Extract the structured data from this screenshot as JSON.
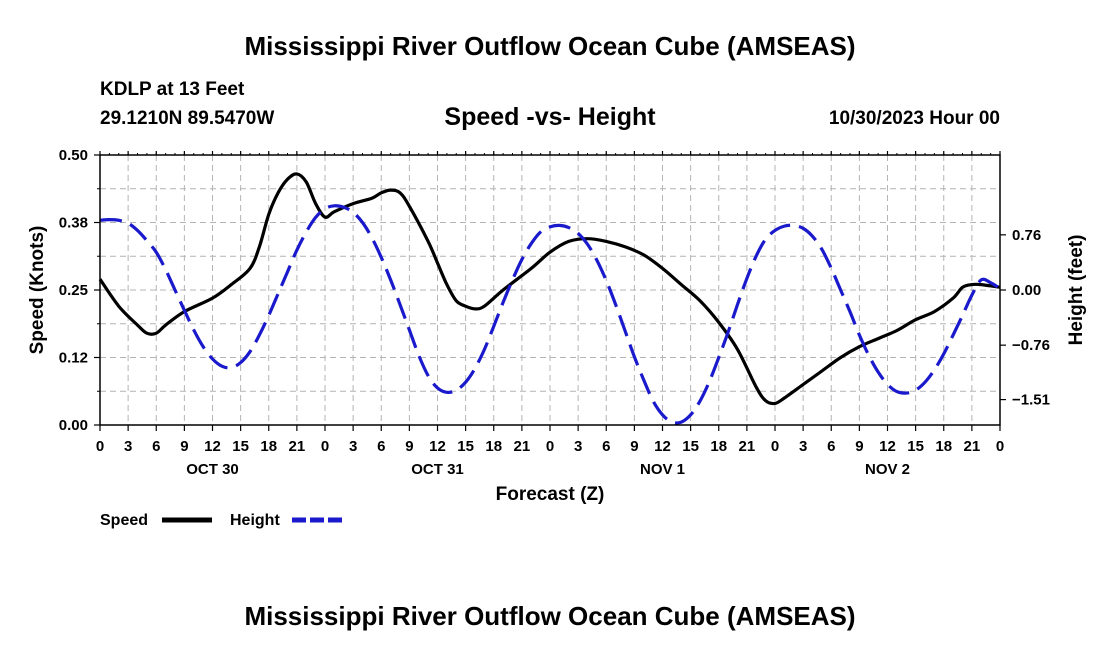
{
  "chart_data": {
    "type": "line",
    "main_title": "Mississippi River Outflow Ocean Cube (AMSEAS)",
    "footer_title": "Mississippi River Outflow Ocean Cube (AMSEAS)",
    "station": "KDLP at 13 Feet",
    "location": "29.1210N  89.5470W",
    "title": "Speed -vs- Height",
    "datetime": "10/30/2023 Hour 00",
    "xlabel": "Forecast (Z)",
    "ylabel_left": "Speed (Knots)",
    "ylabel_right": "Height (feet)",
    "xlim": [
      0,
      96
    ],
    "ylim_left": [
      0,
      0.5
    ],
    "ylim_right": [
      -1.86,
      1.86
    ],
    "x_tick_labels": [
      "0",
      "3",
      "6",
      "9",
      "12",
      "15",
      "18",
      "21",
      "0",
      "3",
      "6",
      "9",
      "12",
      "15",
      "18",
      "21",
      "0",
      "3",
      "6",
      "9",
      "12",
      "15",
      "18",
      "21",
      "0",
      "3",
      "6",
      "9",
      "12",
      "15",
      "18",
      "21",
      "0"
    ],
    "day_labels": [
      {
        "label": "OCT 30",
        "hour": 12
      },
      {
        "label": "OCT 31",
        "hour": 36
      },
      {
        "label": "NOV 1",
        "hour": 60
      },
      {
        "label": "NOV 2",
        "hour": 84
      }
    ],
    "left_ticks": [
      {
        "value": 0.0,
        "label": "0.00"
      },
      {
        "value": 0.125,
        "label": "0.12"
      },
      {
        "value": 0.25,
        "label": "0.25"
      },
      {
        "value": 0.375,
        "label": "0.38"
      },
      {
        "value": 0.5,
        "label": "0.50"
      }
    ],
    "right_ticks": [
      {
        "value": 0.76,
        "label": "0.76"
      },
      {
        "value": 0.0,
        "label": "0.00"
      },
      {
        "value": -0.76,
        "label": "−0.76"
      },
      {
        "value": -1.51,
        "label": "−1.51"
      }
    ],
    "legend": [
      {
        "name": "Speed",
        "color": "#000000",
        "dashed": false
      },
      {
        "name": "Height",
        "color": "#1a1acc",
        "dashed": true
      }
    ],
    "series": [
      {
        "name": "Speed",
        "axis": "left",
        "color": "#000000",
        "points": [
          [
            0,
            0.27
          ],
          [
            2,
            0.22
          ],
          [
            4,
            0.185
          ],
          [
            5,
            0.17
          ],
          [
            6,
            0.17
          ],
          [
            7,
            0.185
          ],
          [
            9,
            0.21
          ],
          [
            12,
            0.235
          ],
          [
            14,
            0.26
          ],
          [
            16,
            0.29
          ],
          [
            17,
            0.33
          ],
          [
            18,
            0.39
          ],
          [
            19,
            0.43
          ],
          [
            20,
            0.455
          ],
          [
            21,
            0.465
          ],
          [
            22,
            0.45
          ],
          [
            23,
            0.41
          ],
          [
            24,
            0.385
          ],
          [
            25,
            0.395
          ],
          [
            27,
            0.41
          ],
          [
            29,
            0.42
          ],
          [
            30,
            0.43
          ],
          [
            31,
            0.435
          ],
          [
            32,
            0.43
          ],
          [
            33,
            0.405
          ],
          [
            35,
            0.34
          ],
          [
            36,
            0.3
          ],
          [
            37,
            0.26
          ],
          [
            38,
            0.23
          ],
          [
            39,
            0.22
          ],
          [
            40,
            0.215
          ],
          [
            41,
            0.22
          ],
          [
            43,
            0.25
          ],
          [
            46,
            0.29
          ],
          [
            48,
            0.32
          ],
          [
            50,
            0.34
          ],
          [
            52,
            0.345
          ],
          [
            54,
            0.34
          ],
          [
            56,
            0.33
          ],
          [
            58,
            0.315
          ],
          [
            60,
            0.29
          ],
          [
            62,
            0.26
          ],
          [
            64,
            0.23
          ],
          [
            66,
            0.19
          ],
          [
            68,
            0.14
          ],
          [
            70,
            0.07
          ],
          [
            71,
            0.045
          ],
          [
            72,
            0.04
          ],
          [
            73,
            0.05
          ],
          [
            75,
            0.075
          ],
          [
            77,
            0.1
          ],
          [
            79,
            0.125
          ],
          [
            81,
            0.145
          ],
          [
            83,
            0.16
          ],
          [
            85,
            0.175
          ],
          [
            87,
            0.195
          ],
          [
            89,
            0.21
          ],
          [
            91,
            0.235
          ],
          [
            92,
            0.255
          ],
          [
            93,
            0.26
          ],
          [
            94,
            0.26
          ],
          [
            96,
            0.255
          ]
        ]
      },
      {
        "name": "Height",
        "axis": "right",
        "color": "#1a1acc",
        "points": [
          [
            0,
            0.96
          ],
          [
            1,
            0.97
          ],
          [
            2,
            0.96
          ],
          [
            3,
            0.92
          ],
          [
            4,
            0.82
          ],
          [
            5,
            0.68
          ],
          [
            6,
            0.52
          ],
          [
            7,
            0.28
          ],
          [
            8,
            0.0
          ],
          [
            9,
            -0.28
          ],
          [
            10,
            -0.55
          ],
          [
            11,
            -0.78
          ],
          [
            12,
            -0.95
          ],
          [
            13,
            -1.05
          ],
          [
            14,
            -1.07
          ],
          [
            15,
            -1.0
          ],
          [
            16,
            -0.85
          ],
          [
            17,
            -0.62
          ],
          [
            18,
            -0.35
          ],
          [
            19,
            -0.05
          ],
          [
            20,
            0.25
          ],
          [
            21,
            0.55
          ],
          [
            22,
            0.8
          ],
          [
            23,
            1.0
          ],
          [
            24,
            1.12
          ],
          [
            25,
            1.16
          ],
          [
            26,
            1.14
          ],
          [
            27,
            1.07
          ],
          [
            28,
            0.93
          ],
          [
            29,
            0.72
          ],
          [
            30,
            0.45
          ],
          [
            31,
            0.14
          ],
          [
            32,
            -0.2
          ],
          [
            33,
            -0.55
          ],
          [
            34,
            -0.9
          ],
          [
            35,
            -1.18
          ],
          [
            36,
            -1.35
          ],
          [
            37,
            -1.41
          ],
          [
            38,
            -1.38
          ],
          [
            39,
            -1.27
          ],
          [
            40,
            -1.08
          ],
          [
            41,
            -0.82
          ],
          [
            42,
            -0.5
          ],
          [
            43,
            -0.17
          ],
          [
            44,
            0.14
          ],
          [
            45,
            0.42
          ],
          [
            46,
            0.64
          ],
          [
            47,
            0.8
          ],
          [
            48,
            0.87
          ],
          [
            49,
            0.89
          ],
          [
            50,
            0.86
          ],
          [
            51,
            0.78
          ],
          [
            52,
            0.63
          ],
          [
            53,
            0.41
          ],
          [
            54,
            0.13
          ],
          [
            55,
            -0.2
          ],
          [
            56,
            -0.56
          ],
          [
            57,
            -0.92
          ],
          [
            58,
            -1.24
          ],
          [
            59,
            -1.53
          ],
          [
            60,
            -1.72
          ],
          [
            61,
            -1.82
          ],
          [
            62,
            -1.82
          ],
          [
            63,
            -1.72
          ],
          [
            64,
            -1.53
          ],
          [
            65,
            -1.26
          ],
          [
            66,
            -0.93
          ],
          [
            67,
            -0.58
          ],
          [
            68,
            -0.2
          ],
          [
            69,
            0.16
          ],
          [
            70,
            0.47
          ],
          [
            71,
            0.7
          ],
          [
            72,
            0.82
          ],
          [
            73,
            0.88
          ],
          [
            74,
            0.89
          ],
          [
            75,
            0.85
          ],
          [
            76,
            0.74
          ],
          [
            77,
            0.56
          ],
          [
            78,
            0.3
          ],
          [
            79,
            0.0
          ],
          [
            80,
            -0.3
          ],
          [
            81,
            -0.62
          ],
          [
            82,
            -0.9
          ],
          [
            83,
            -1.13
          ],
          [
            84,
            -1.3
          ],
          [
            85,
            -1.4
          ],
          [
            86,
            -1.42
          ],
          [
            87,
            -1.38
          ],
          [
            88,
            -1.27
          ],
          [
            89,
            -1.1
          ],
          [
            90,
            -0.88
          ],
          [
            91,
            -0.62
          ],
          [
            92,
            -0.35
          ],
          [
            93,
            -0.07
          ],
          [
            94,
            0.14
          ],
          [
            95,
            0.1
          ],
          [
            96,
            0.02
          ]
        ]
      }
    ]
  }
}
